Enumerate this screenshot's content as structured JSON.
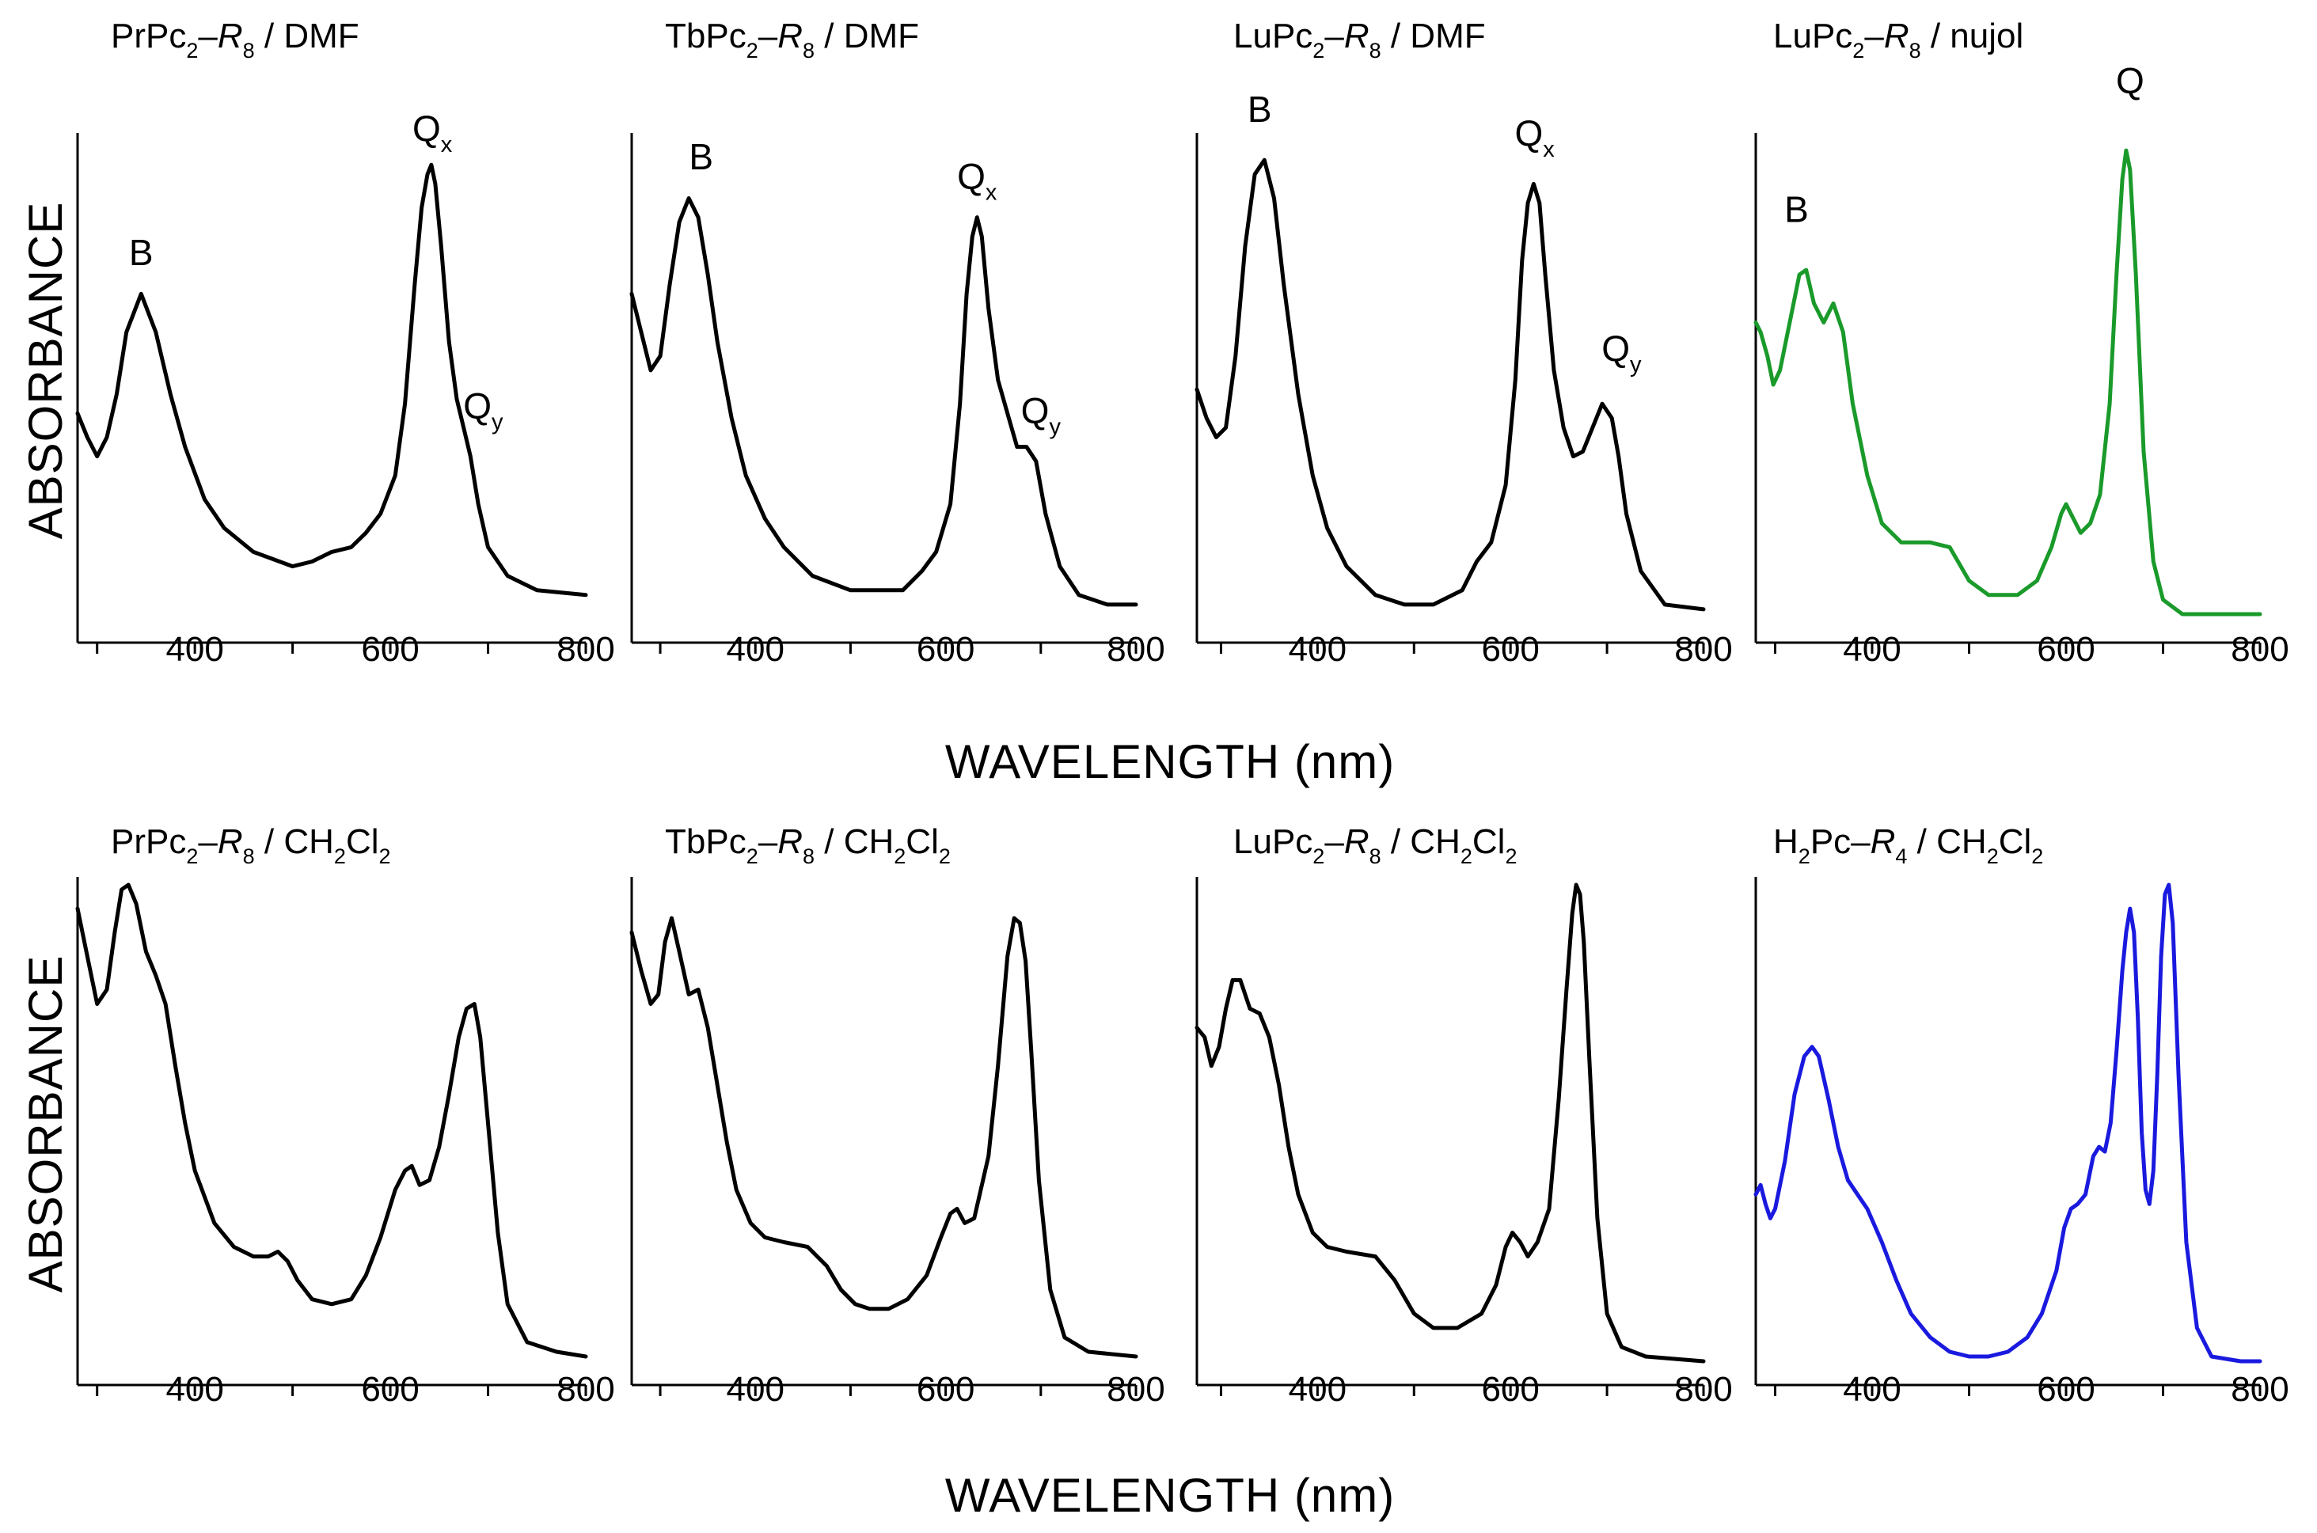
{
  "figure": {
    "xlabel_top": "WAVELENGTH (nm)",
    "xlabel_bottom": "WAVELENGTH (nm)",
    "ylabel_top": "ABSORBANCE",
    "ylabel_bottom": "ABSORBANCE"
  },
  "chart_data": [
    {
      "type": "line",
      "row": 0,
      "col": 0,
      "title": [
        {
          "t": "PrPc"
        },
        {
          "t": "2",
          "sub": true
        },
        {
          "t": "–"
        },
        {
          "t": "R",
          "italic": true
        },
        {
          "t": "8",
          "sub": true
        },
        {
          "t": " / DMF"
        }
      ],
      "xlim": [
        280,
        800
      ],
      "xticks": [
        400,
        600,
        800
      ],
      "ylim": [
        0,
        1
      ],
      "color": "#000000",
      "x": [
        280,
        290,
        300,
        310,
        320,
        330,
        345,
        360,
        375,
        390,
        410,
        430,
        460,
        500,
        520,
        540,
        560,
        575,
        590,
        605,
        615,
        625,
        632,
        638,
        642,
        646,
        652,
        660,
        668,
        675,
        682,
        690,
        700,
        720,
        750,
        800
      ],
      "y": [
        0.43,
        0.38,
        0.34,
        0.38,
        0.47,
        0.6,
        0.68,
        0.6,
        0.47,
        0.36,
        0.25,
        0.19,
        0.14,
        0.11,
        0.12,
        0.14,
        0.15,
        0.18,
        0.22,
        0.3,
        0.45,
        0.7,
        0.86,
        0.93,
        0.95,
        0.91,
        0.78,
        0.58,
        0.46,
        0.4,
        0.34,
        0.24,
        0.15,
        0.09,
        0.06,
        0.05
      ],
      "annotations": [
        {
          "x": 345,
          "y": 0.74,
          "parts": [
            {
              "t": "B"
            }
          ]
        },
        {
          "x": 643,
          "y": 1.0,
          "parts": [
            {
              "t": "Q"
            },
            {
              "t": "x",
              "sub": true
            }
          ]
        },
        {
          "x": 695,
          "y": 0.42,
          "parts": [
            {
              "t": "Q"
            },
            {
              "t": "y",
              "sub": true
            }
          ]
        }
      ]
    },
    {
      "type": "line",
      "row": 0,
      "col": 1,
      "title": [
        {
          "t": "TbPc"
        },
        {
          "t": "2",
          "sub": true
        },
        {
          "t": "–"
        },
        {
          "t": "R",
          "italic": true
        },
        {
          "t": "8",
          "sub": true
        },
        {
          "t": " / DMF"
        }
      ],
      "xlim": [
        270,
        800
      ],
      "xticks": [
        400,
        600,
        800
      ],
      "ylim": [
        0,
        1
      ],
      "color": "#000000",
      "x": [
        270,
        280,
        290,
        300,
        310,
        320,
        330,
        340,
        350,
        360,
        375,
        390,
        410,
        430,
        460,
        500,
        530,
        555,
        575,
        590,
        605,
        615,
        622,
        628,
        633,
        638,
        645,
        655,
        665,
        675,
        685,
        695,
        705,
        720,
        740,
        770,
        800
      ],
      "y": [
        0.68,
        0.6,
        0.52,
        0.55,
        0.7,
        0.83,
        0.88,
        0.84,
        0.72,
        0.58,
        0.42,
        0.3,
        0.21,
        0.15,
        0.09,
        0.06,
        0.06,
        0.06,
        0.1,
        0.14,
        0.24,
        0.45,
        0.68,
        0.8,
        0.84,
        0.8,
        0.65,
        0.5,
        0.43,
        0.36,
        0.36,
        0.33,
        0.22,
        0.11,
        0.05,
        0.03,
        0.03
      ],
      "annotations": [
        {
          "x": 343,
          "y": 0.94,
          "parts": [
            {
              "t": "B"
            }
          ]
        },
        {
          "x": 633,
          "y": 0.9,
          "parts": [
            {
              "t": "Q"
            },
            {
              "t": "x",
              "sub": true
            }
          ]
        },
        {
          "x": 700,
          "y": 0.41,
          "parts": [
            {
              "t": "Q"
            },
            {
              "t": "y",
              "sub": true
            }
          ]
        }
      ]
    },
    {
      "type": "line",
      "row": 0,
      "col": 2,
      "title": [
        {
          "t": "LuPc"
        },
        {
          "t": "2",
          "sub": true
        },
        {
          "t": "–"
        },
        {
          "t": "R",
          "italic": true
        },
        {
          "t": "8",
          "sub": true
        },
        {
          "t": " / DMF"
        }
      ],
      "xlim": [
        275,
        800
      ],
      "xticks": [
        400,
        600,
        800
      ],
      "ylim": [
        0,
        1
      ],
      "color": "#000000",
      "x": [
        275,
        285,
        295,
        305,
        315,
        325,
        335,
        345,
        355,
        365,
        380,
        395,
        410,
        430,
        460,
        490,
        520,
        550,
        565,
        580,
        595,
        605,
        612,
        618,
        624,
        630,
        636,
        645,
        655,
        665,
        675,
        685,
        695,
        705,
        712,
        720,
        735,
        760,
        800
      ],
      "y": [
        0.48,
        0.42,
        0.38,
        0.4,
        0.55,
        0.78,
        0.93,
        0.96,
        0.88,
        0.7,
        0.47,
        0.3,
        0.19,
        0.11,
        0.05,
        0.03,
        0.03,
        0.06,
        0.12,
        0.16,
        0.28,
        0.5,
        0.75,
        0.87,
        0.91,
        0.87,
        0.72,
        0.52,
        0.4,
        0.34,
        0.35,
        0.4,
        0.45,
        0.42,
        0.34,
        0.22,
        0.1,
        0.03,
        0.02
      ],
      "annotations": [
        {
          "x": 340,
          "y": 1.04,
          "parts": [
            {
              "t": "B"
            }
          ]
        },
        {
          "x": 625,
          "y": 0.99,
          "parts": [
            {
              "t": "Q"
            },
            {
              "t": "x",
              "sub": true
            }
          ]
        },
        {
          "x": 715,
          "y": 0.54,
          "parts": [
            {
              "t": "Q"
            },
            {
              "t": "y",
              "sub": true
            }
          ]
        }
      ]
    },
    {
      "type": "line",
      "row": 0,
      "col": 3,
      "title": [
        {
          "t": "LuPc"
        },
        {
          "t": "2",
          "sub": true
        },
        {
          "t": "–"
        },
        {
          "t": "R",
          "italic": true
        },
        {
          "t": "8",
          "sub": true
        },
        {
          "t": " / nujol"
        }
      ],
      "xlim": [
        280,
        800
      ],
      "xticks": [
        400,
        600,
        800
      ],
      "ylim": [
        0,
        1
      ],
      "color": "#1a9a2a",
      "x": [
        280,
        285,
        292,
        298,
        305,
        315,
        325,
        332,
        340,
        350,
        360,
        370,
        380,
        395,
        410,
        430,
        460,
        480,
        500,
        520,
        550,
        570,
        585,
        595,
        600,
        605,
        615,
        625,
        635,
        645,
        652,
        658,
        662,
        666,
        672,
        680,
        690,
        700,
        720,
        760,
        800
      ],
      "y": [
        0.62,
        0.6,
        0.55,
        0.49,
        0.52,
        0.62,
        0.72,
        0.73,
        0.66,
        0.62,
        0.66,
        0.6,
        0.45,
        0.3,
        0.2,
        0.16,
        0.16,
        0.15,
        0.08,
        0.05,
        0.05,
        0.08,
        0.15,
        0.22,
        0.24,
        0.22,
        0.18,
        0.2,
        0.26,
        0.45,
        0.72,
        0.92,
        0.98,
        0.94,
        0.72,
        0.35,
        0.12,
        0.04,
        0.01,
        0.01,
        0.01
      ],
      "annotations": [
        {
          "x": 322,
          "y": 0.83,
          "parts": [
            {
              "t": "B"
            }
          ]
        },
        {
          "x": 666,
          "y": 1.1,
          "parts": [
            {
              "t": "Q"
            }
          ]
        }
      ]
    },
    {
      "type": "line",
      "row": 1,
      "col": 0,
      "title": [
        {
          "t": "PrPc"
        },
        {
          "t": "2",
          "sub": true
        },
        {
          "t": "–"
        },
        {
          "t": "R",
          "italic": true
        },
        {
          "t": "8",
          "sub": true
        },
        {
          "t": " / CH"
        },
        {
          "t": "2",
          "sub": true
        },
        {
          "t": "Cl"
        },
        {
          "t": "2",
          "sub": true
        }
      ],
      "xlim": [
        280,
        800
      ],
      "xticks": [
        400,
        600,
        800
      ],
      "ylim": [
        0,
        1
      ],
      "color": "#000000",
      "x": [
        280,
        290,
        300,
        310,
        318,
        325,
        332,
        340,
        350,
        360,
        370,
        380,
        390,
        400,
        420,
        440,
        460,
        475,
        485,
        495,
        505,
        520,
        540,
        560,
        575,
        590,
        605,
        615,
        622,
        630,
        640,
        650,
        660,
        670,
        678,
        686,
        692,
        700,
        710,
        720,
        740,
        770,
        800
      ],
      "y": [
        0.95,
        0.85,
        0.75,
        0.78,
        0.9,
        0.99,
        1.0,
        0.96,
        0.86,
        0.81,
        0.75,
        0.62,
        0.5,
        0.4,
        0.29,
        0.24,
        0.22,
        0.22,
        0.23,
        0.21,
        0.17,
        0.13,
        0.12,
        0.13,
        0.18,
        0.26,
        0.36,
        0.4,
        0.41,
        0.37,
        0.38,
        0.45,
        0.56,
        0.68,
        0.74,
        0.75,
        0.68,
        0.5,
        0.27,
        0.12,
        0.04,
        0.02,
        0.01
      ],
      "annotations": []
    },
    {
      "type": "line",
      "row": 1,
      "col": 1,
      "title": [
        {
          "t": "TbPc"
        },
        {
          "t": "2",
          "sub": true
        },
        {
          "t": "–"
        },
        {
          "t": "R",
          "italic": true
        },
        {
          "t": "8",
          "sub": true
        },
        {
          "t": " / CH"
        },
        {
          "t": "2",
          "sub": true
        },
        {
          "t": "Cl"
        },
        {
          "t": "2",
          "sub": true
        }
      ],
      "xlim": [
        270,
        800
      ],
      "xticks": [
        400,
        600,
        800
      ],
      "ylim": [
        0,
        1
      ],
      "color": "#000000",
      "x": [
        270,
        280,
        290,
        298,
        305,
        312,
        320,
        330,
        340,
        350,
        360,
        370,
        380,
        395,
        410,
        430,
        455,
        475,
        490,
        505,
        520,
        540,
        560,
        580,
        595,
        605,
        612,
        620,
        630,
        645,
        655,
        665,
        672,
        678,
        684,
        690,
        698,
        710,
        725,
        750,
        800
      ],
      "y": [
        0.9,
        0.82,
        0.75,
        0.77,
        0.88,
        0.93,
        0.86,
        0.77,
        0.78,
        0.7,
        0.58,
        0.46,
        0.36,
        0.29,
        0.26,
        0.25,
        0.24,
        0.2,
        0.15,
        0.12,
        0.11,
        0.11,
        0.13,
        0.18,
        0.26,
        0.31,
        0.32,
        0.29,
        0.3,
        0.43,
        0.62,
        0.85,
        0.93,
        0.92,
        0.84,
        0.65,
        0.38,
        0.15,
        0.05,
        0.02,
        0.01
      ],
      "annotations": []
    },
    {
      "type": "line",
      "row": 1,
      "col": 2,
      "title": [
        {
          "t": "LuPc"
        },
        {
          "t": "2",
          "sub": true
        },
        {
          "t": "–"
        },
        {
          "t": "R",
          "italic": true
        },
        {
          "t": "8",
          "sub": true
        },
        {
          "t": " / CH"
        },
        {
          "t": "2",
          "sub": true
        },
        {
          "t": "Cl"
        },
        {
          "t": "2",
          "sub": true
        }
      ],
      "xlim": [
        275,
        800
      ],
      "xticks": [
        400,
        600,
        800
      ],
      "ylim": [
        0,
        1
      ],
      "color": "#000000",
      "x": [
        275,
        283,
        290,
        298,
        305,
        312,
        320,
        330,
        340,
        350,
        360,
        370,
        380,
        395,
        410,
        430,
        460,
        480,
        500,
        520,
        545,
        570,
        585,
        595,
        602,
        610,
        618,
        628,
        640,
        650,
        658,
        664,
        668,
        672,
        676,
        682,
        690,
        700,
        715,
        740,
        800
      ],
      "y": [
        0.7,
        0.68,
        0.62,
        0.66,
        0.74,
        0.8,
        0.8,
        0.74,
        0.73,
        0.68,
        0.58,
        0.45,
        0.35,
        0.27,
        0.24,
        0.23,
        0.22,
        0.17,
        0.1,
        0.07,
        0.07,
        0.1,
        0.16,
        0.24,
        0.27,
        0.25,
        0.22,
        0.25,
        0.32,
        0.55,
        0.78,
        0.94,
        1.0,
        0.98,
        0.88,
        0.62,
        0.3,
        0.1,
        0.03,
        0.01,
        0.0
      ],
      "annotations": []
    },
    {
      "type": "line",
      "row": 1,
      "col": 3,
      "title": [
        {
          "t": "H"
        },
        {
          "t": "2",
          "sub": true
        },
        {
          "t": "Pc–"
        },
        {
          "t": "R",
          "italic": true
        },
        {
          "t": "4",
          "sub": true
        },
        {
          "t": " / CH"
        },
        {
          "t": "2",
          "sub": true
        },
        {
          "t": "Cl"
        },
        {
          "t": "2",
          "sub": true
        }
      ],
      "xlim": [
        280,
        800
      ],
      "xticks": [
        400,
        600,
        800
      ],
      "ylim": [
        0,
        1
      ],
      "color": "#1a1adf",
      "x": [
        280,
        285,
        290,
        295,
        300,
        310,
        320,
        330,
        338,
        345,
        355,
        365,
        375,
        385,
        395,
        410,
        425,
        440,
        460,
        480,
        500,
        520,
        540,
        560,
        575,
        590,
        598,
        605,
        612,
        620,
        628,
        634,
        640,
        646,
        652,
        658,
        662,
        666,
        670,
        674,
        678,
        682,
        686,
        690,
        694,
        698,
        702,
        706,
        710,
        716,
        724,
        735,
        750,
        780,
        800
      ],
      "y": [
        0.35,
        0.37,
        0.33,
        0.3,
        0.32,
        0.42,
        0.56,
        0.64,
        0.66,
        0.64,
        0.55,
        0.45,
        0.38,
        0.35,
        0.32,
        0.25,
        0.17,
        0.1,
        0.05,
        0.02,
        0.01,
        0.01,
        0.02,
        0.05,
        0.1,
        0.19,
        0.28,
        0.32,
        0.33,
        0.35,
        0.43,
        0.45,
        0.44,
        0.5,
        0.65,
        0.82,
        0.9,
        0.95,
        0.9,
        0.72,
        0.48,
        0.36,
        0.33,
        0.4,
        0.6,
        0.85,
        0.98,
        1.0,
        0.92,
        0.6,
        0.25,
        0.07,
        0.01,
        0.0,
        0.0
      ],
      "annotations": []
    }
  ]
}
